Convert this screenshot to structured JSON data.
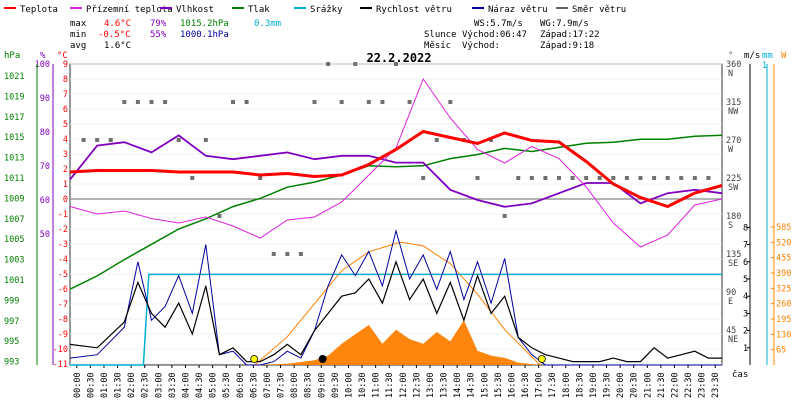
{
  "legend": [
    {
      "label": "Teplota",
      "color": "#ff0000"
    },
    {
      "label": "Přízemní teplota",
      "color": "#dd22dd"
    },
    {
      "label": "Vlhkost",
      "color": "#8000c0"
    },
    {
      "label": "Tlak",
      "color": "#008000"
    },
    {
      "label": "Srážky",
      "color": "#00b0d0"
    },
    {
      "label": "Rychlost větru",
      "color": "#000000"
    },
    {
      "label": "Náraz větru",
      "color": "#0000a0"
    },
    {
      "label": "Směr větru",
      "color": "#606060"
    }
  ],
  "stats": {
    "max": {
      "label": "max",
      "temp": "4.6°C",
      "hum": "79%",
      "press": "1015.2hPa",
      "rain": "0.3mm"
    },
    "min": {
      "label": "min",
      "temp": "-0.5°C",
      "hum": "55%",
      "press": "1000.1hPa"
    },
    "avg": {
      "label": "avg",
      "temp": "1.6°C"
    }
  },
  "wind": {
    "ws": "WS:5.7m/s",
    "wg": "WG:7.9m/s"
  },
  "sun": {
    "label": "Slunce",
    "rise": "Východ:06:47",
    "set": "Západ:17:22"
  },
  "moon": {
    "label": "Měsíc",
    "rise": "Východ:",
    "set": "Západ:9:18"
  },
  "chart_data": {
    "type": "line",
    "title": "22.2.2022",
    "xlabel": "čas",
    "x_ticks": [
      "00:00",
      "00:30",
      "01:00",
      "01:30",
      "02:00",
      "02:30",
      "03:00",
      "03:30",
      "04:00",
      "04:30",
      "05:00",
      "05:30",
      "06:00",
      "06:30",
      "07:00",
      "07:30",
      "08:00",
      "08:30",
      "09:00",
      "09:30",
      "10:00",
      "10:30",
      "11:00",
      "11:30",
      "12:00",
      "12:30",
      "13:00",
      "13:30",
      "14:00",
      "14:30",
      "15:00",
      "15:30",
      "16:00",
      "16:30",
      "17:00",
      "17:30",
      "18:00",
      "18:30",
      "19:00",
      "19:30",
      "20:00",
      "20:30",
      "21:00",
      "21:30",
      "22:00",
      "22:30",
      "23:00",
      "23:30"
    ],
    "axes": {
      "hpa": {
        "label": "hPa",
        "ticks": [
          "1021",
          "1019",
          "1017",
          "1015",
          "1013",
          "1011",
          "1009",
          "1007",
          "1005",
          "1003",
          "1001",
          "999",
          "997",
          "995",
          "993"
        ]
      },
      "percent": {
        "label": "%",
        "ticks": [
          "100",
          "90",
          "80",
          "70",
          "60",
          "50"
        ]
      },
      "celsius": {
        "label": "°C",
        "ticks": [
          "9",
          "8",
          "7",
          "6",
          "5",
          "4",
          "3",
          "2",
          "1",
          "0",
          "-1",
          "-2",
          "-3",
          "-4",
          "-5",
          "-6",
          "-7",
          "-8",
          "-9",
          "-10",
          "-11"
        ]
      },
      "direction": {
        "label": "°",
        "ticks": [
          {
            "deg": "360",
            "dir": "N"
          },
          {
            "deg": "315",
            "dir": "NW"
          },
          {
            "deg": "270",
            "dir": "W"
          },
          {
            "deg": "225",
            "dir": "SW"
          },
          {
            "deg": "180",
            "dir": "S"
          },
          {
            "deg": "135",
            "dir": "SE"
          },
          {
            "deg": "90",
            "dir": "E"
          },
          {
            "deg": "45",
            "dir": "NE"
          }
        ]
      },
      "ms": {
        "label": "m/s",
        "ticks": [
          "8",
          "7",
          "6",
          "5",
          "4",
          "3",
          "2",
          "1"
        ]
      },
      "mm": {
        "label": "mm",
        "ticks": [
          "1"
        ]
      },
      "watt": {
        "label": "W",
        "ticks": [
          "585",
          "520",
          "455",
          "390",
          "325",
          "260",
          "195",
          "130",
          "65"
        ]
      }
    },
    "series": [
      {
        "name": "Teplota",
        "unit": "°C",
        "x": [
          0,
          1,
          2,
          3,
          4,
          5,
          6,
          7,
          8,
          9,
          10,
          11,
          12,
          13,
          14,
          15,
          16,
          17,
          18,
          19,
          20,
          21,
          22,
          23,
          24
        ],
        "values": [
          1.8,
          1.9,
          1.9,
          1.9,
          1.8,
          1.8,
          1.8,
          1.6,
          1.7,
          1.5,
          1.6,
          2.3,
          3.3,
          4.5,
          4.1,
          3.7,
          4.4,
          3.9,
          3.8,
          2.5,
          1.0,
          0.1,
          -0.5,
          0.4,
          0.9
        ]
      },
      {
        "name": "Přízemní teplota",
        "unit": "°C",
        "x": [
          0,
          1,
          2,
          3,
          4,
          5,
          6,
          7,
          8,
          9,
          10,
          11,
          12,
          13,
          14,
          15,
          16,
          17,
          18,
          19,
          20,
          21,
          22,
          23,
          24
        ],
        "values": [
          -0.5,
          -1.0,
          -0.8,
          -1.3,
          -1.6,
          -1.2,
          -1.8,
          -2.6,
          -1.4,
          -1.2,
          -0.2,
          1.6,
          3.4,
          8.0,
          5.4,
          3.3,
          2.4,
          3.5,
          2.7,
          0.8,
          -1.6,
          -3.2,
          -2.4,
          -0.4,
          0.0
        ]
      },
      {
        "name": "Vlhkost",
        "unit": "%",
        "x": [
          0,
          1,
          2,
          3,
          4,
          5,
          6,
          7,
          8,
          9,
          10,
          11,
          12,
          13,
          14,
          15,
          16,
          17,
          18,
          19,
          20,
          21,
          22,
          23,
          24
        ],
        "values": [
          66,
          76,
          77,
          74,
          79,
          73,
          72,
          73,
          74,
          72,
          73,
          73,
          71,
          71,
          63,
          60,
          58,
          59,
          62,
          65,
          65,
          59,
          62,
          63,
          62
        ]
      },
      {
        "name": "Tlak",
        "unit": "hPa",
        "x": [
          0,
          1,
          2,
          3,
          4,
          5,
          6,
          7,
          8,
          9,
          10,
          11,
          12,
          13,
          14,
          15,
          16,
          17,
          18,
          19,
          20,
          21,
          22,
          23,
          24
        ],
        "values": [
          1000.1,
          1001.4,
          1003.0,
          1004.5,
          1006.0,
          1007.0,
          1008.2,
          1009.0,
          1010.1,
          1010.6,
          1011.3,
          1012.2,
          1012.1,
          1012.2,
          1012.9,
          1013.3,
          1013.9,
          1013.6,
          1014.0,
          1014.4,
          1014.5,
          1014.8,
          1014.8,
          1015.1,
          1015.2
        ]
      },
      {
        "name": "Srážky",
        "unit": "mm",
        "x": [
          0,
          2.7,
          2.9,
          24
        ],
        "values": [
          0,
          0,
          0.3,
          0.3
        ]
      },
      {
        "name": "Rychlost větru",
        "unit": "m/s",
        "x": [
          0,
          1,
          2,
          2.5,
          3,
          3.5,
          4,
          4.5,
          5,
          5.5,
          6,
          6.5,
          7,
          7.5,
          8,
          8.5,
          9,
          9.5,
          10,
          10.5,
          11,
          11.5,
          12,
          12.5,
          13,
          13.5,
          14,
          14.5,
          15,
          15.5,
          16,
          16.5,
          17,
          17.5,
          18,
          18.5,
          19,
          19.5,
          20,
          20.5,
          21,
          21.5,
          22,
          22.5,
          23,
          23.5,
          24
        ],
        "values": [
          1.2,
          1.0,
          2.5,
          4.8,
          3.0,
          2.2,
          3.6,
          1.8,
          4.6,
          0.6,
          1.0,
          0.2,
          0.2,
          0.6,
          1.2,
          0.6,
          2.0,
          3.0,
          4.0,
          4.2,
          5.0,
          3.6,
          6.0,
          3.8,
          5.0,
          3.0,
          4.8,
          2.6,
          5.2,
          3.0,
          4.0,
          1.6,
          1.0,
          0.6,
          0.4,
          0.2,
          0.2,
          0.2,
          0.4,
          0.2,
          0.2,
          1.0,
          0.4,
          0.6,
          0.8,
          0.4,
          0.4
        ]
      },
      {
        "name": "Náraz větru",
        "unit": "m/s",
        "x": [
          0,
          1,
          2,
          2.5,
          3,
          3.5,
          4,
          4.5,
          5,
          5.5,
          6,
          6.5,
          7,
          7.5,
          8,
          8.5,
          9,
          9.5,
          10,
          10.5,
          11,
          11.5,
          12,
          12.5,
          13,
          13.5,
          14,
          14.5,
          15,
          15.5,
          16,
          16.5,
          17,
          17.5,
          18,
          18.5,
          19,
          19.5,
          20,
          20.5,
          21,
          21.5,
          22,
          22.5,
          23,
          23.5,
          24
        ],
        "values": [
          0.4,
          0.6,
          2.2,
          6.0,
          2.6,
          3.4,
          5.2,
          3.0,
          7.0,
          0.6,
          0.8,
          0.0,
          0.0,
          0.2,
          0.8,
          0.4,
          2.0,
          4.6,
          6.4,
          5.2,
          6.6,
          4.6,
          7.8,
          5.0,
          6.4,
          4.4,
          6.6,
          3.8,
          6.0,
          3.6,
          6.2,
          1.6,
          0.6,
          0.0,
          0.0,
          0.0,
          0.0,
          0.0,
          0.0,
          0.0,
          0.0,
          0.0,
          0.0,
          0.0,
          0.0,
          0.0,
          0.0
        ]
      },
      {
        "name": "Směr větru",
        "unit": "°",
        "x": [
          0.5,
          1,
          1.5,
          2,
          2.5,
          3,
          3.5,
          4,
          4.5,
          5,
          5.5,
          6,
          6.5,
          7,
          7.5,
          8,
          8.5,
          9,
          9.5,
          10,
          10.5,
          11,
          11.5,
          12,
          12.5,
          13,
          13.5,
          14,
          14.5,
          15,
          15.5,
          16,
          16.5,
          17,
          17.5,
          18,
          18.5,
          19,
          19.5,
          20,
          20.5,
          21,
          21.5,
          22,
          22.5,
          23,
          23.5
        ],
        "values": [
          270,
          270,
          270,
          315,
          315,
          315,
          315,
          270,
          225,
          270,
          180,
          315,
          315,
          225,
          135,
          135,
          135,
          315,
          360,
          315,
          360,
          315,
          315,
          360,
          315,
          225,
          270,
          315,
          270,
          225,
          270,
          180,
          225,
          225,
          225,
          225,
          225,
          225,
          225,
          225,
          225,
          225,
          225,
          225,
          225,
          225,
          225
        ]
      },
      {
        "name": "Sluneční záření",
        "unit": "W",
        "x": [
          6.8,
          8,
          9,
          9.5,
          10,
          10.5,
          11,
          11.5,
          12,
          12.5,
          13,
          13.5,
          14,
          14.5,
          15,
          15.5,
          16,
          16.5,
          17.3
        ],
        "values": [
          0,
          5,
          20,
          40,
          90,
          130,
          170,
          90,
          150,
          110,
          90,
          140,
          100,
          190,
          60,
          40,
          30,
          10,
          0
        ]
      },
      {
        "name": "Teoretické záření",
        "unit": "W",
        "x": [
          6.8,
          8,
          9,
          10,
          11,
          12,
          12.2,
          13,
          14,
          15,
          16,
          17.3
        ],
        "values": [
          0,
          120,
          260,
          400,
          480,
          515,
          520,
          505,
          430,
          300,
          150,
          0
        ]
      }
    ]
  }
}
